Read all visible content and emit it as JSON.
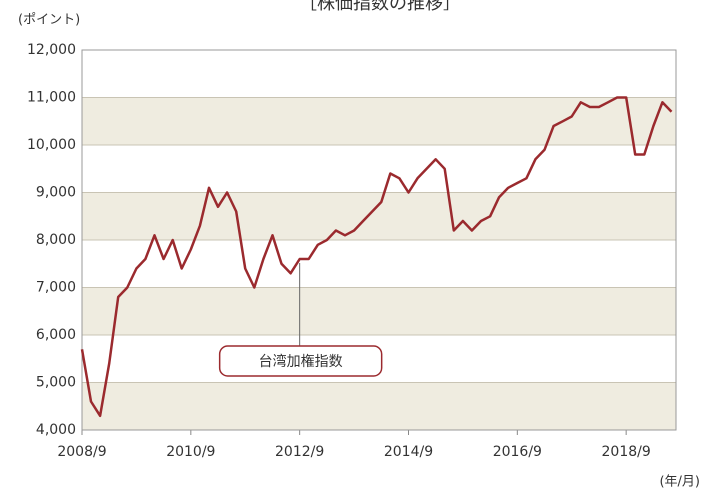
{
  "chart_data": {
    "type": "line",
    "title": "［株価指数の推移］",
    "y_label": "(ポイント)",
    "x_label": "(年/月)",
    "x": [
      2008.667,
      2008.833,
      2009,
      2009.167,
      2009.333,
      2009.5,
      2009.667,
      2009.833,
      2010,
      2010.167,
      2010.333,
      2010.5,
      2010.667,
      2010.833,
      2011,
      2011.167,
      2011.333,
      2011.5,
      2011.667,
      2011.833,
      2012,
      2012.167,
      2012.333,
      2012.5,
      2012.667,
      2012.833,
      2013,
      2013.167,
      2013.333,
      2013.5,
      2013.667,
      2013.833,
      2014,
      2014.167,
      2014.333,
      2014.5,
      2014.667,
      2014.833,
      2015,
      2015.167,
      2015.333,
      2015.5,
      2015.667,
      2015.833,
      2016,
      2016.167,
      2016.333,
      2016.5,
      2016.667,
      2016.833,
      2017,
      2017.167,
      2017.333,
      2017.5,
      2017.667,
      2017.833,
      2018,
      2018.167,
      2018.333,
      2018.5,
      2018.667,
      2018.833,
      2019,
      2019.167,
      2019.333,
      2019.5
    ],
    "series": [
      {
        "name": "台湾加権指数",
        "color": "#9b2a2e",
        "values": [
          5700,
          4600,
          4300,
          5400,
          6800,
          7000,
          7400,
          7600,
          8100,
          7600,
          8000,
          7400,
          7800,
          8300,
          9100,
          8700,
          9000,
          8600,
          7400,
          7000,
          7600,
          8100,
          7500,
          7300,
          7600,
          7600,
          7900,
          8000,
          8200,
          8100,
          8200,
          8400,
          8600,
          8800,
          9400,
          9300,
          9000,
          9300,
          9500,
          9700,
          9500,
          8200,
          8400,
          8200,
          8400,
          8500,
          8900,
          9100,
          9200,
          9300,
          9700,
          9900,
          10400,
          10500,
          10600,
          10900,
          10800,
          10800,
          10900,
          11000,
          11000,
          9800,
          9800,
          10400,
          10900,
          10700
        ]
      }
    ],
    "xlim": [
      2008.667,
      2019.583
    ],
    "xticks": [
      {
        "value": 2008.667,
        "label": "2008/9"
      },
      {
        "value": 2010.667,
        "label": "2010/9"
      },
      {
        "value": 2012.667,
        "label": "2012/9"
      },
      {
        "value": 2014.667,
        "label": "2014/9"
      },
      {
        "value": 2016.667,
        "label": "2016/9"
      },
      {
        "value": 2018.667,
        "label": "2018/9"
      }
    ],
    "ylim": [
      4000,
      12000
    ],
    "yticks": [
      {
        "value": 4000,
        "label": "4,000"
      },
      {
        "value": 5000,
        "label": "5,000"
      },
      {
        "value": 6000,
        "label": "6,000"
      },
      {
        "value": 7000,
        "label": "7,000"
      },
      {
        "value": 8000,
        "label": "8,000"
      },
      {
        "value": 9000,
        "label": "9,000"
      },
      {
        "value": 10000,
        "label": "10,000"
      },
      {
        "value": 11000,
        "label": "11,000"
      },
      {
        "value": 12000,
        "label": "12,000"
      }
    ],
    "annotation_x": 2012.667,
    "grid": true
  }
}
